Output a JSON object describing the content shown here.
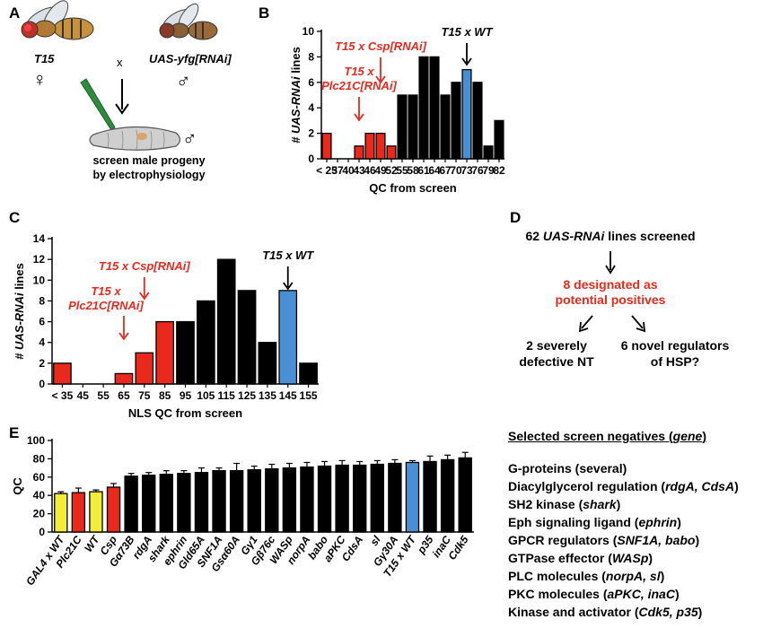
{
  "panel_labels": {
    "a": "A",
    "b": "B",
    "c": "C",
    "d": "D",
    "e": "E"
  },
  "colors": {
    "red": "#e8291c",
    "black": "#000000",
    "blue": "#4a8fd4",
    "yellow": "#f2ec3a"
  },
  "panel_a": {
    "female_label": "T15",
    "cross_symbol": "x",
    "male_label": "UAS-yfg[RNAi]",
    "female_symbol": "♀",
    "male_symbol": "♂",
    "progeny_symbol": "♂",
    "caption_line1": "screen male progeny",
    "caption_line2": "by electrophysiology"
  },
  "panel_d": {
    "line1_count": "62",
    "line1_italic": "UAS-RNAi",
    "line1_rest": "lines screened",
    "mid_line1": "8 designated as",
    "mid_line2": "potential positives",
    "left_line1": "2 severely",
    "left_line2": "defective NT",
    "right_line1": "6 novel regulators",
    "right_line2": "of HSP?"
  },
  "negatives": {
    "title_prefix": "Selected screen negatives (",
    "title_gene": "gene",
    "title_suffix": ")",
    "items": [
      {
        "label": "G-proteins (several)"
      },
      {
        "label": "Diacylglycerol regulation (",
        "genes": "rdgA, CdsA",
        "close": ")"
      },
      {
        "label": "SH2 kinase (",
        "genes": "shark",
        "close": ")"
      },
      {
        "label": "Eph signaling ligand (",
        "genes": "ephrin",
        "close": ")"
      },
      {
        "label": "GPCR regulators (",
        "genes": "SNF1A, babo",
        "close": ")"
      },
      {
        "label": "GTPase effector (",
        "genes": "WASp",
        "close": ")"
      },
      {
        "label": "PLC molecules (",
        "genes": "norpA, sl",
        "close": ")"
      },
      {
        "label": "PKC molecules (",
        "genes": "aPKC, inaC",
        "close": ")"
      },
      {
        "label": "Kinase and activator (",
        "genes": "Cdk5, p35",
        "close": ")"
      }
    ]
  },
  "chart_data": [
    {
      "id": "B",
      "type": "bar",
      "xlabel": "QC from screen",
      "ylabel_italic": "# UAS-RNAi",
      "ylabel_rest": " lines",
      "ylim": [
        0,
        10
      ],
      "yticks": [
        0,
        2,
        4,
        6,
        8,
        10
      ],
      "categories": [
        "< 25",
        "37",
        "40",
        "43",
        "46",
        "49",
        "52",
        "55",
        "58",
        "61",
        "64",
        "67",
        "70",
        "73",
        "76",
        "79",
        "82"
      ],
      "values": [
        2,
        0,
        0,
        1,
        2,
        2,
        1,
        5,
        5,
        8,
        8,
        5,
        6,
        7,
        6,
        1,
        3
      ],
      "bar_colors": [
        "red",
        "black",
        "black",
        "red",
        "red",
        "red",
        "red",
        "black",
        "black",
        "black",
        "black",
        "black",
        "black",
        "blue",
        "black",
        "black",
        "black"
      ],
      "annotations": [
        {
          "line1": "T15 x",
          "line2": "Plc21C[RNAi]",
          "target": "43",
          "color": "red"
        },
        {
          "line1": "T15 x Csp[RNAi]",
          "target": "49",
          "color": "red"
        },
        {
          "line1": "T15 x WT",
          "target": "73",
          "color": "black"
        }
      ]
    },
    {
      "id": "C",
      "type": "bar",
      "xlabel": "NLS QC from screen",
      "ylabel_italic": "# UAS-RNAi",
      "ylabel_rest": " lines",
      "ylim": [
        0,
        14
      ],
      "yticks": [
        0,
        2,
        4,
        6,
        8,
        10,
        12,
        14
      ],
      "categories": [
        "< 35",
        "45",
        "55",
        "65",
        "75",
        "85",
        "95",
        "105",
        "115",
        "125",
        "135",
        "145",
        "155"
      ],
      "values": [
        2,
        0,
        0,
        1,
        3,
        6,
        6,
        8,
        12,
        9,
        4,
        9,
        2
      ],
      "bar_colors": [
        "red",
        "black",
        "black",
        "red",
        "red",
        "red",
        "black",
        "black",
        "black",
        "black",
        "black",
        "blue",
        "black"
      ],
      "annotations": [
        {
          "line1": "T15 x",
          "line2": "Plc21C[RNAi]",
          "target": "65",
          "color": "red"
        },
        {
          "line1": "T15 x Csp[RNAi]",
          "target": "75",
          "color": "red"
        },
        {
          "line1": "T15 x WT",
          "target": "145",
          "color": "black"
        }
      ]
    },
    {
      "id": "E",
      "type": "bar",
      "ylabel": "QC",
      "ylim": [
        0,
        100
      ],
      "yticks": [
        0,
        20,
        40,
        60,
        80,
        100
      ],
      "categories": [
        "GAL4 x WT",
        "Plc21C",
        "WT",
        "Csp",
        "Gα73B",
        "rdgA",
        "shark",
        "ephrin",
        "Gld65A",
        "SNF1A",
        "Gsα60A",
        "Gγ1",
        "Gβ76c",
        "WASp",
        "norpA",
        "babo",
        "aPKC",
        "CdsA",
        "sl",
        "Gγ30A",
        "T15 x WT",
        "p35",
        "inaC",
        "Cdk5"
      ],
      "values": [
        42,
        43,
        44,
        49,
        61,
        62,
        63,
        64,
        65,
        67,
        67,
        68,
        69,
        70,
        71,
        72,
        73,
        73,
        74,
        75,
        76,
        77,
        79,
        81
      ],
      "errors": [
        2,
        5,
        2,
        4,
        3,
        3,
        4,
        3,
        5,
        3,
        8,
        4,
        5,
        5,
        5,
        5,
        5,
        4,
        4,
        4,
        2,
        6,
        5,
        6
      ],
      "bar_colors": [
        "yellow",
        "red",
        "yellow",
        "red",
        "black",
        "black",
        "black",
        "black",
        "black",
        "black",
        "black",
        "black",
        "black",
        "black",
        "black",
        "black",
        "black",
        "black",
        "black",
        "black",
        "blue",
        "black",
        "black",
        "black"
      ]
    }
  ]
}
